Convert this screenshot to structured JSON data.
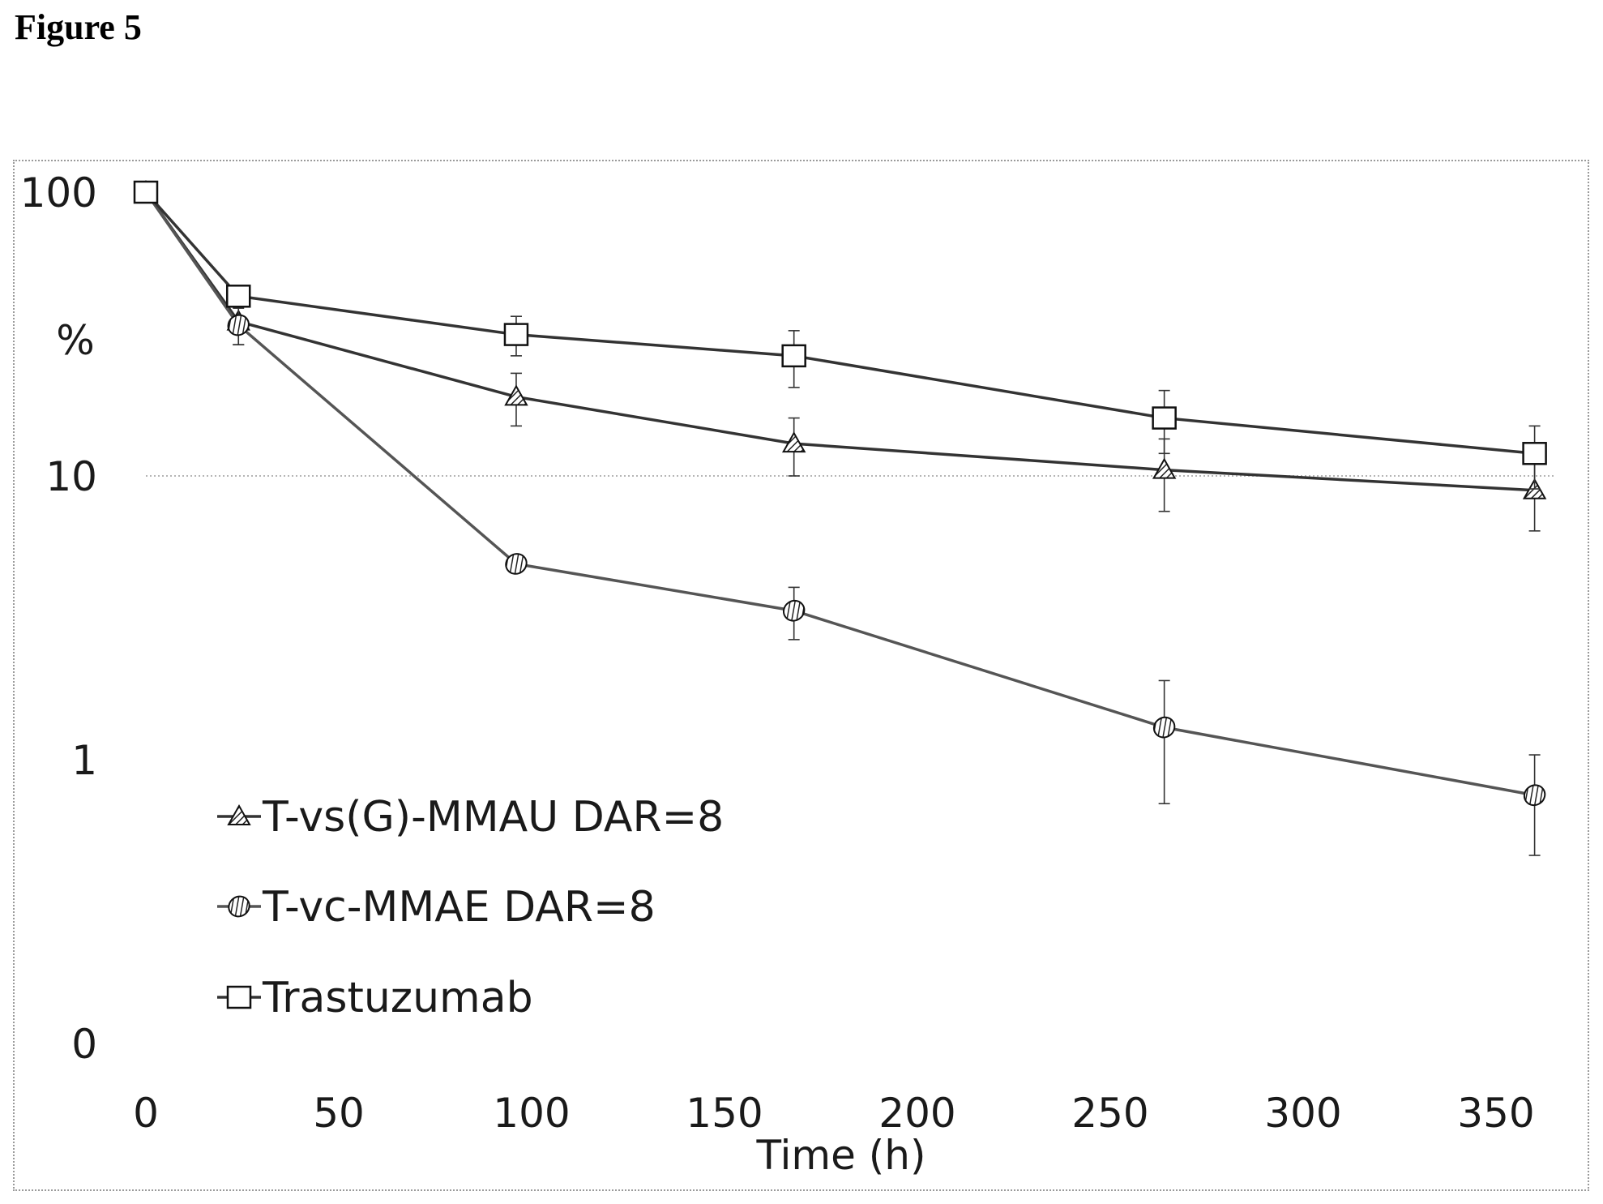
{
  "figure_label": "Figure 5",
  "chart_data": {
    "type": "line",
    "title": "",
    "xlabel": "Time (h)",
    "ylabel": "%",
    "y_scale": "log",
    "xlim": [
      0,
      365
    ],
    "ylim": [
      0.1,
      100
    ],
    "x_ticks": [
      0,
      50,
      100,
      150,
      200,
      250,
      300,
      350
    ],
    "y_ticks": [
      {
        "value": 100,
        "label": "100"
      },
      {
        "value": 10,
        "label": "10"
      },
      {
        "value": 1,
        "label": "1"
      },
      {
        "value": 0.1,
        "label": "0"
      }
    ],
    "gridlines": [
      10
    ],
    "legend_position": "bottom-left",
    "series": [
      {
        "name": "T-vs(G)-MMAU DAR=8",
        "marker": "triangle",
        "color": "#333333",
        "x": [
          0,
          24,
          96,
          168,
          264,
          360
        ],
        "y": [
          100,
          35,
          19,
          13,
          10.5,
          8.9
        ],
        "err": [
          0,
          6,
          4,
          3,
          3,
          2.5
        ]
      },
      {
        "name": "T-vc-MMAE DAR=8",
        "marker": "diamond",
        "color": "#555555",
        "x": [
          0,
          24,
          96,
          168,
          264,
          360
        ],
        "y": [
          100,
          34,
          4.9,
          3.35,
          1.3,
          0.75
        ],
        "err": [
          0,
          5,
          0.3,
          0.7,
          0.6,
          0.29
        ]
      },
      {
        "name": "Trastuzumab",
        "marker": "square",
        "color": "#333333",
        "x": [
          0,
          24,
          96,
          168,
          264,
          360
        ],
        "y": [
          100,
          43,
          31.5,
          26.5,
          16,
          12
        ],
        "err": [
          0,
          3,
          5,
          6,
          4,
          3
        ]
      }
    ]
  }
}
